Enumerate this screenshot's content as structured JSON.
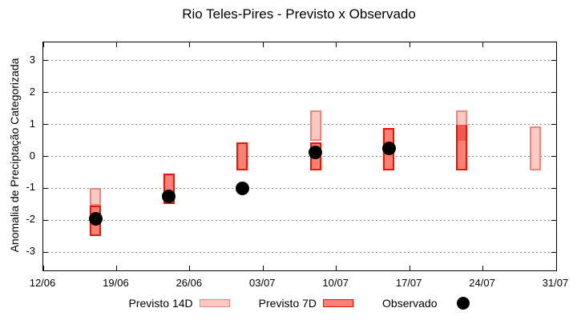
{
  "chart_data": {
    "type": "bar",
    "subtype": "range-bars-with-scatter",
    "title": "Rio Teles-Pires - Previsto x Observado",
    "xlabel": "",
    "ylabel": "Anomalia de Preciptação Categorizada",
    "ylim": [
      -3.57,
      3.57
    ],
    "yticks": [
      -3,
      -2,
      -1,
      0,
      1,
      2,
      3
    ],
    "grid": "horizontal dotted gray, ticks mirrored on all borders",
    "legend_position": "bottom-center",
    "x_axis_days_range": [
      0,
      49
    ],
    "xticks": [
      {
        "day": 0,
        "label": "12/06"
      },
      {
        "day": 7,
        "label": "19/06"
      },
      {
        "day": 14,
        "label": "26/06"
      },
      {
        "day": 21,
        "label": "03/07"
      },
      {
        "day": 28,
        "label": "10/07"
      },
      {
        "day": 35,
        "label": "17/07"
      },
      {
        "day": 42,
        "label": "24/07"
      },
      {
        "day": 49,
        "label": "31/07"
      }
    ],
    "series": [
      {
        "name": "Previsto 14D",
        "kind": "range-bar",
        "points": [
          {
            "day": 5,
            "low": -1.55,
            "high": -1.0
          },
          {
            "day": 26,
            "low": 0.5,
            "high": 1.45
          },
          {
            "day": 40,
            "low": 0.5,
            "high": 1.45
          },
          {
            "day": 47,
            "low": -0.45,
            "high": 0.95
          }
        ]
      },
      {
        "name": "Previsto 7D",
        "kind": "range-bar",
        "points": [
          {
            "day": 5,
            "low": -2.5,
            "high": -1.55
          },
          {
            "day": 12,
            "low": -1.5,
            "high": -0.55
          },
          {
            "day": 19,
            "low": -0.45,
            "high": 0.45
          },
          {
            "day": 26,
            "low": -0.45,
            "high": 0.45
          },
          {
            "day": 33,
            "low": -0.45,
            "high": 0.9
          },
          {
            "day": 40,
            "low": -0.45,
            "high": 1.0
          }
        ]
      },
      {
        "name": "Observado",
        "kind": "scatter",
        "points": [
          {
            "day": 5,
            "value": -1.95
          },
          {
            "day": 12,
            "value": -1.25
          },
          {
            "day": 19,
            "value": -1.0
          },
          {
            "day": 26,
            "value": 0.13
          },
          {
            "day": 33,
            "value": 0.25
          }
        ]
      }
    ]
  },
  "legend": {
    "items": [
      {
        "label": "Previsto 14D"
      },
      {
        "label": "Previsto 7D"
      },
      {
        "label": "Observado"
      }
    ]
  },
  "colors": {
    "previsto14d_fill": "#f9c9c2",
    "previsto14d_border": "#ef857c",
    "previsto7d_fill": "#fa8174",
    "previsto7d_border": "#ee1404",
    "overlap_fill": "#f4594f",
    "observado": "#000000",
    "grid": "#858585",
    "axis": "#000000",
    "background": "#ffffff"
  }
}
